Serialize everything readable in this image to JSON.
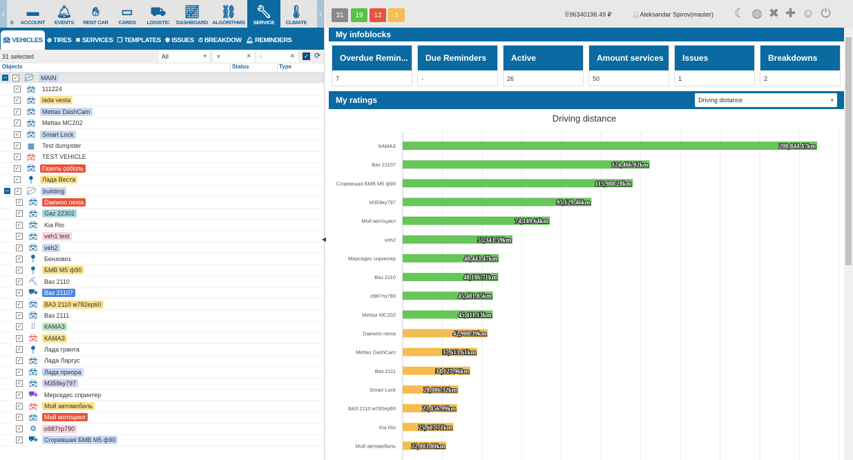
{
  "topnav": {
    "items": [
      {
        "label": "S",
        "icon": "prev-item-icon"
      },
      {
        "label": "ACCOUNT",
        "icon": "wallet-icon"
      },
      {
        "label": "EVENTS",
        "icon": "bell-icon"
      },
      {
        "label": "RENT CAR",
        "icon": "handshake-icon"
      },
      {
        "label": "CARDS",
        "icon": "card-icon"
      },
      {
        "label": "LOGISTIC",
        "icon": "truck-icon"
      },
      {
        "label": "DASHBOARD",
        "icon": "chart-icon"
      },
      {
        "label": "ALGORITHMS",
        "icon": "sitemap-icon"
      },
      {
        "label": "SERVICE",
        "icon": "wrench-icon",
        "active": true
      },
      {
        "label": "CLIMATE",
        "icon": "thermometer-icon"
      }
    ]
  },
  "tabs": [
    {
      "label": "VEHICLES",
      "icon": "car-icon",
      "active": true
    },
    {
      "label": "TIRES",
      "icon": "tire-icon"
    },
    {
      "label": "SERVICES",
      "icon": "tools-icon"
    },
    {
      "label": "TEMPLATES",
      "icon": "templates-icon"
    },
    {
      "label": "ISSUES",
      "icon": "issues-icon"
    },
    {
      "label": "BREAKDOW",
      "icon": "stopwatch-icon"
    },
    {
      "label": "REMINDERS",
      "icon": "bell-icon"
    }
  ],
  "toolbar": {
    "selected": "31 selected",
    "filter_value": "All"
  },
  "columns": {
    "objects": "Objects",
    "status": "Status",
    "type": "Type"
  },
  "tree": [
    {
      "label": "MAIN",
      "level": 0,
      "group": true,
      "hl": "#c9d9f3"
    },
    {
      "label": "111224",
      "level": 1,
      "icon": "car",
      "ic": "#1565a0"
    },
    {
      "label": "lada vesta",
      "level": 1,
      "icon": "car",
      "ic": "#1565a0",
      "hl": "#fbe38a"
    },
    {
      "label": "Mettax DashCam",
      "level": 1,
      "icon": "car",
      "ic": "#1565a0",
      "hl": "#c9d9f3"
    },
    {
      "label": "Mettax MC202",
      "level": 1,
      "icon": "car",
      "ic": "#1565a0"
    },
    {
      "label": "Smart Lock",
      "level": 1,
      "icon": "car",
      "ic": "#1565a0",
      "hl": "#c9d9f3"
    },
    {
      "label": "Test dumpster",
      "level": 1,
      "icon": "dumpster",
      "ic": "#1565a0"
    },
    {
      "label": "TEST VEHICLE",
      "level": 1,
      "icon": "car",
      "ic": "#e74c3c"
    },
    {
      "label": "Газель соболь",
      "level": 1,
      "icon": "car",
      "ic": "#1565a0",
      "hl": "#e8533a",
      "fg": "#fff"
    },
    {
      "label": "Лада Веста",
      "level": 1,
      "icon": "pin",
      "ic": "#1565a0",
      "hl": "#fbe38a"
    },
    {
      "label": "building",
      "level": 0,
      "group": false,
      "folder": true,
      "hl": "#c9d9f3"
    },
    {
      "label": "Daewoo nexia",
      "level": 1,
      "icon": "car",
      "ic": "#1565a0",
      "hl": "#e8533a",
      "fg": "#fff"
    },
    {
      "label": "Gaz 22302",
      "level": 1,
      "icon": "car",
      "ic": "#1565a0",
      "hl": "#a8dbe3"
    },
    {
      "label": "Kia Rio",
      "level": 1,
      "icon": "car",
      "ic": "#1565a0"
    },
    {
      "label": "veh1 test",
      "level": 1,
      "icon": "car",
      "ic": "#1565a0",
      "hl": "#f9d3df"
    },
    {
      "label": "veh2",
      "level": 1,
      "icon": "car",
      "ic": "#1565a0",
      "hl": "#c9d9f3"
    },
    {
      "label": "Бензовоз",
      "level": 1,
      "icon": "pin",
      "ic": "#1565a0"
    },
    {
      "label": "БМВ М5 ф90",
      "level": 1,
      "icon": "pin",
      "ic": "#1565a0",
      "hl": "#fbe38a"
    },
    {
      "label": "Ваз 2110",
      "level": 1,
      "icon": "excavator",
      "ic": "#3b5bd6"
    },
    {
      "label": "Ваз 21107",
      "level": 1,
      "icon": "truck",
      "ic": "#1565a0",
      "hl": "#4a86e0",
      "fg": "#fff"
    },
    {
      "label": "ВАЗ 2110 м782ер60",
      "level": 1,
      "icon": "car",
      "ic": "#1565a0",
      "hl": "#fbe38a"
    },
    {
      "label": "Ваз 2111",
      "level": 1,
      "icon": "car",
      "ic": "#1565a0"
    },
    {
      "label": "КАМАЗ",
      "level": 1,
      "icon": "footprints",
      "ic": "#1565a0",
      "hl": "#bfe8c9"
    },
    {
      "label": "КАМАЗ",
      "level": 1,
      "icon": "car",
      "ic": "#e74c3c",
      "hl": "#fbe38a"
    },
    {
      "label": "Лада гранта",
      "level": 1,
      "icon": "pin",
      "ic": "#1565a0"
    },
    {
      "label": "Лада Ларгус",
      "level": 1,
      "icon": "car",
      "ic": "#1565a0"
    },
    {
      "label": "Лада приора",
      "level": 1,
      "icon": "car",
      "ic": "#1565a0",
      "hl": "#c9d9f3"
    },
    {
      "label": "М358ку797",
      "level": 1,
      "icon": "car",
      "ic": "#1565a0",
      "hl": "#ddd3f5"
    },
    {
      "label": "Мерседес спринтер",
      "level": 1,
      "icon": "dumptruck",
      "ic": "#7b3fd6"
    },
    {
      "label": "Мой автомобиль",
      "level": 1,
      "icon": "car",
      "ic": "#e74c3c",
      "hl": "#fbe38a"
    },
    {
      "label": "Мой мотоцикл",
      "level": 1,
      "icon": "car",
      "ic": "#1565a0",
      "hl": "#e8533a",
      "fg": "#fff"
    },
    {
      "label": "о987тр790",
      "level": 1,
      "icon": "tractor",
      "ic": "#1565a0",
      "hl": "#f9d3df"
    },
    {
      "label": "Сгоревшая БМВ М5 ф90",
      "level": 1,
      "icon": "truck",
      "ic": "#1565a0",
      "hl": "#c9d9f3"
    }
  ],
  "status_counts": [
    {
      "value": "31",
      "color": "#8a8a8a"
    },
    {
      "value": "19",
      "color": "#5cbf4a"
    },
    {
      "value": "12",
      "color": "#e8533a"
    },
    {
      "value": "1",
      "color": "#f5bd50"
    }
  ],
  "balance": "96340196.49 ₽",
  "user": "Aleksandar Spirov(master)",
  "infoblocks": {
    "title": "My infoblocks",
    "cards": [
      {
        "title": "Overdue Remin...",
        "value": "7"
      },
      {
        "title": "Due Reminders",
        "value": "-"
      },
      {
        "title": "Active",
        "value": "26"
      },
      {
        "title": "Amount services",
        "value": "50"
      },
      {
        "title": "Issues",
        "value": "1"
      },
      {
        "title": "Breakdowns",
        "value": "2"
      }
    ]
  },
  "ratings": {
    "title": "My ratings",
    "select": "Driving distance"
  },
  "chart_data": {
    "type": "bar",
    "orientation": "horizontal",
    "title": "Driving distance",
    "xlim": [
      0,
      220000
    ],
    "grid": true,
    "unit": "km",
    "categories": [
      "КАМАЗ",
      "Ваз 21107",
      "Сгоревшая БМВ М5 ф90",
      "М358ку797",
      "Мой мотоцикл",
      "veh2",
      "Мерседес спринтер",
      "Ваз 2110",
      "о987тр790",
      "Mettax MC202",
      "Daewoo nexia",
      "Mettax DashCam",
      "Ваз 2111",
      "Smart Lock",
      "ВАЗ 2110 м782ер60",
      "Kia Rio",
      "Мой автомобиль"
    ],
    "values": [
      208844.47,
      124466.02,
      115988.28,
      95129.46,
      74149.64,
      55343.59,
      48443.47,
      48186.71,
      45481.85,
      45411.13,
      42908.39,
      37613.61,
      34127.96,
      28086.32,
      27456.99,
      25607.71,
      22003.8
    ],
    "labels": [
      "208,844.47km",
      "124,466.02km",
      "115,988.28km",
      "95,129.46km",
      "74,149.64km",
      "55,343.59km",
      "48,443.47km",
      "48,186.71km",
      "45,481.85km",
      "45,411.13km",
      "42,908.39km",
      "37,613.61km",
      "34,127.96km",
      "28,086.32km",
      "27,456.99km",
      "25,607.71km",
      "22,003.80km"
    ],
    "colors": {
      "above": "#67c55a",
      "below": "#f5bd50"
    }
  }
}
